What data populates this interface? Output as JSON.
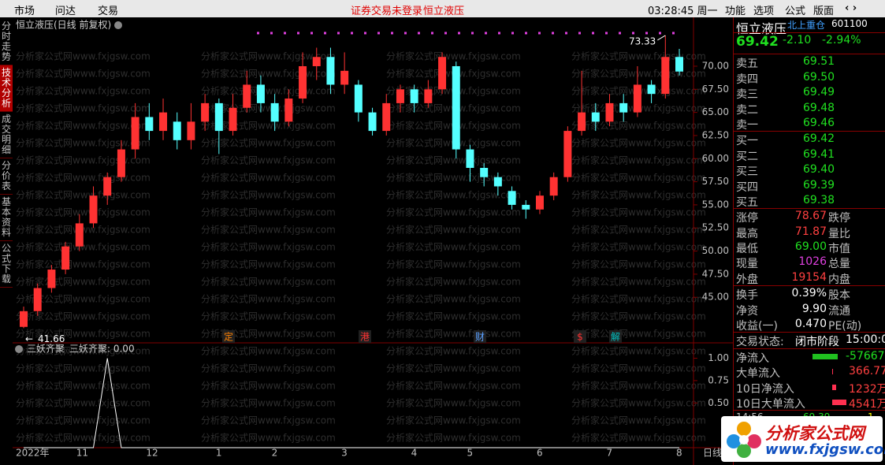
{
  "menu": {
    "left": [
      "市场",
      "问达",
      "交易"
    ],
    "notice": "证券交易未登录",
    "stock": "恒立液压",
    "time": "03:28:45 周一",
    "right": [
      "功能",
      "选项",
      "公式",
      "版面"
    ]
  },
  "tabs": [
    "分时走势",
    "技术分析",
    "成交明细",
    "分价表",
    "基本资料",
    "公式下载"
  ],
  "watermark": "分析家公式网www.fxjgsw.com",
  "chart_data": {
    "type": "candlestick",
    "title": "恒立液压(日线 前复权)",
    "categories": [
      "2022年",
      null,
      null,
      null,
      "11",
      null,
      null,
      null,
      null,
      "12",
      null,
      null,
      null,
      null,
      "1",
      null,
      null,
      null,
      "2",
      null,
      null,
      null,
      null,
      "3",
      null,
      null,
      null,
      null,
      "4",
      null,
      null,
      null,
      "5",
      null,
      null,
      null,
      null,
      "6",
      null,
      null,
      null,
      null,
      "7",
      null,
      null,
      null,
      null,
      "8"
    ],
    "candles": [
      [
        41.8,
        43.5,
        44,
        41.66
      ],
      [
        43.5,
        46,
        46.5,
        43
      ],
      [
        46,
        48,
        48.5,
        45.5
      ],
      [
        48,
        50.5,
        51,
        47.5
      ],
      [
        50.5,
        53,
        54,
        50
      ],
      [
        53,
        56,
        57,
        52.5
      ],
      [
        56,
        58,
        58.5,
        55
      ],
      [
        58,
        61,
        62,
        57.5
      ],
      [
        61,
        64.5,
        66,
        60
      ],
      [
        64.5,
        63,
        66,
        62
      ],
      [
        63,
        65,
        66.5,
        62
      ],
      [
        64,
        62,
        65,
        61
      ],
      [
        62,
        64,
        66,
        61
      ],
      [
        64,
        66,
        67,
        63
      ],
      [
        66,
        63,
        66.5,
        60.5
      ],
      [
        63,
        65.5,
        67,
        62.5
      ],
      [
        65.5,
        68,
        69.5,
        65
      ],
      [
        68,
        66,
        69,
        65
      ],
      [
        66,
        64,
        67,
        63
      ],
      [
        64,
        66.5,
        67.5,
        63.5
      ],
      [
        66.5,
        70,
        71.5,
        66
      ],
      [
        70,
        71,
        72,
        68.5
      ],
      [
        71,
        68,
        72,
        67
      ],
      [
        68,
        69.5,
        71.5,
        67
      ],
      [
        68,
        65,
        68.5,
        64
      ],
      [
        65,
        63,
        65.5,
        62.5
      ],
      [
        63,
        66,
        67,
        62.5
      ],
      [
        66,
        67.5,
        68,
        65
      ],
      [
        67.5,
        66,
        68,
        65
      ],
      [
        66,
        67.5,
        68.5,
        65.5
      ],
      [
        67.5,
        71,
        71.5,
        67
      ],
      [
        70,
        61,
        70.5,
        60
      ],
      [
        61,
        59,
        61.5,
        57.5
      ],
      [
        59,
        58,
        59.5,
        57
      ],
      [
        58,
        57,
        58.5,
        56
      ],
      [
        56.5,
        55,
        57,
        54.5
      ],
      [
        55,
        54.5,
        55.5,
        53.5
      ],
      [
        54.5,
        56,
        56.5,
        54
      ],
      [
        56,
        58,
        58.5,
        55.5
      ],
      [
        58,
        63,
        63.5,
        57.5
      ],
      [
        63,
        65,
        69.5,
        62.5
      ],
      [
        65,
        64,
        66,
        63
      ],
      [
        64,
        66,
        67,
        63.5
      ],
      [
        66,
        65,
        67,
        64
      ],
      [
        65,
        68,
        70,
        64.5
      ],
      [
        68,
        67,
        68.5,
        66
      ],
      [
        67,
        71,
        73.33,
        66.5
      ],
      [
        71,
        69.42,
        71.87,
        69
      ]
    ],
    "up_color": "#ff3232",
    "down_color": "#54ffff",
    "ylim": [
      40.5,
      73.75
    ],
    "yticks": [
      {
        "value": 45,
        "label": "45.00"
      },
      {
        "value": 47.5,
        "label": "47.50"
      },
      {
        "value": 50,
        "label": "50.00"
      },
      {
        "value": 52.5,
        "label": "52.50"
      },
      {
        "value": 55,
        "label": "55.00"
      },
      {
        "value": 57.5,
        "label": "57.50"
      },
      {
        "value": 60,
        "label": "60.00"
      },
      {
        "value": 62.5,
        "label": "62.50"
      },
      {
        "value": 65,
        "label": "65.00"
      },
      {
        "value": 67.5,
        "label": "67.50"
      },
      {
        "value": 70,
        "label": "70.00"
      }
    ],
    "high_label": "73.33",
    "low_label": "41.66",
    "events": [
      {
        "text": "定",
        "color": "#ff8000"
      },
      {
        "text": "港",
        "color": "#ff3232"
      },
      {
        "text": "财",
        "color": "#5aa0ff"
      },
      {
        "text": "$",
        "color": "#ff3232"
      },
      {
        "text": "解",
        "color": "#00c0c0"
      }
    ],
    "period": "日线",
    "indicator": {
      "type": "line",
      "title": "三妖齐聚",
      "label": "三妖齐聚: 0.00",
      "color": "#ffffff",
      "values": [
        0,
        0,
        0,
        0,
        0,
        0,
        1,
        0,
        0,
        0,
        0,
        0,
        0,
        0,
        0,
        0,
        0,
        0,
        0,
        0,
        0,
        0,
        0,
        0,
        0,
        0,
        0,
        0,
        0,
        0,
        0,
        0,
        0,
        0,
        0,
        0,
        0,
        0,
        0,
        0,
        0,
        0,
        0,
        0,
        0,
        0,
        0,
        0
      ],
      "ylim": [
        0,
        1.04
      ],
      "yticks": [
        {
          "value": 0.5,
          "label": "0.50"
        },
        {
          "value": 0.75,
          "label": "0.75"
        },
        {
          "value": 1,
          "label": "1.00"
        }
      ]
    }
  },
  "quote": {
    "name": "恒立液压",
    "tag": "北上重仓",
    "code": "601100",
    "price": "69.42",
    "change": "-2.10",
    "change_pct": "-2.94%",
    "asks": [
      [
        "卖五",
        "69.51"
      ],
      [
        "卖四",
        "69.50"
      ],
      [
        "卖三",
        "69.49"
      ],
      [
        "卖二",
        "69.48"
      ],
      [
        "卖一",
        "69.46"
      ]
    ],
    "bids": [
      [
        "买一",
        "69.42"
      ],
      [
        "买二",
        "69.41"
      ],
      [
        "买三",
        "69.40"
      ],
      [
        "买四",
        "69.39"
      ],
      [
        "买五",
        "69.38"
      ]
    ],
    "stats": [
      [
        "涨停",
        "78.67",
        "跌停"
      ],
      [
        "最高",
        "71.87",
        "量比"
      ],
      [
        "最低",
        "69.00",
        "市值"
      ],
      [
        "现量",
        "1026",
        "总量"
      ],
      [
        "外盘",
        "19154",
        "内盘"
      ],
      [
        "换手",
        "0.39%",
        "股本"
      ],
      [
        "净资",
        "9.90",
        "流通"
      ],
      [
        "收益(一)",
        "0.470",
        "PE(动)"
      ]
    ],
    "status_label": "交易状态:",
    "status": "闭市阶段",
    "status_time": "15:00:0",
    "flow": [
      [
        "净流入",
        "-57667"
      ],
      [
        "大单流入",
        "366.77"
      ],
      [
        "10日净流入",
        "1232万"
      ],
      [
        "10日大单流入",
        "4541万"
      ]
    ],
    "tick": [
      "14:56",
      "69.39",
      "1"
    ]
  },
  "logo": {
    "name": "分析家公式网",
    "url": "www.fxjgsw.com"
  }
}
